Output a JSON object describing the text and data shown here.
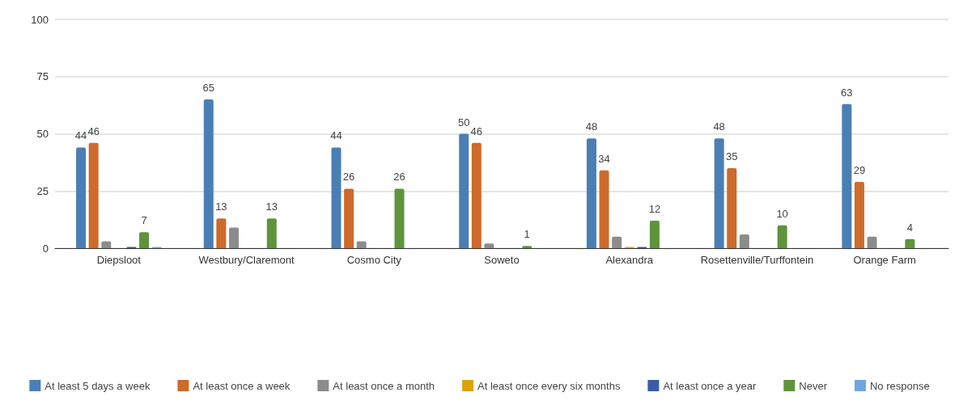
{
  "chart_data": {
    "type": "bar",
    "categories": [
      "Diepsloot",
      "Westbury/Claremont",
      "Cosmo City",
      "Soweto",
      "Alexandra",
      "Rosettenville/Turffontein",
      "Orange Farm"
    ],
    "series": [
      {
        "name": "At least 5 days a week",
        "color": "#4a7fb5",
        "values": [
          44,
          65,
          44,
          50,
          48,
          48,
          63
        ],
        "value_labels": [
          "44",
          "65",
          "44",
          "50",
          "48",
          "48",
          "63"
        ]
      },
      {
        "name": "At least once a week",
        "color": "#cd6a2c",
        "values": [
          46,
          13,
          26,
          46,
          34,
          35,
          29
        ],
        "value_labels": [
          "46",
          "13",
          "26",
          "46",
          "34",
          "35",
          "29"
        ]
      },
      {
        "name": "At least once a month",
        "color": "#8c8c8c",
        "values": [
          3,
          9,
          3,
          2,
          5,
          6,
          5
        ]
      },
      {
        "name": "At least once every six months",
        "color": "#dba40e",
        "values": [
          0,
          0,
          0,
          0,
          0.5,
          0,
          0
        ]
      },
      {
        "name": "At least once a year",
        "color": "#3a5ca8",
        "values": [
          0.5,
          0,
          0,
          0,
          0.5,
          0,
          0
        ]
      },
      {
        "name": "Never",
        "color": "#5e943a",
        "values": [
          7,
          13,
          26,
          1,
          12,
          10,
          4
        ],
        "value_labels": [
          "7",
          "13",
          "26",
          "1",
          "12",
          "10",
          "4"
        ]
      },
      {
        "name": "No response",
        "color": "#6ea7de",
        "values": [
          0.5,
          0,
          0,
          0,
          0,
          0,
          0
        ]
      }
    ],
    "ylim": [
      0,
      100
    ],
    "yticks": [
      0,
      25,
      50,
      75,
      100
    ],
    "grid": "y",
    "legend": "bottom"
  }
}
